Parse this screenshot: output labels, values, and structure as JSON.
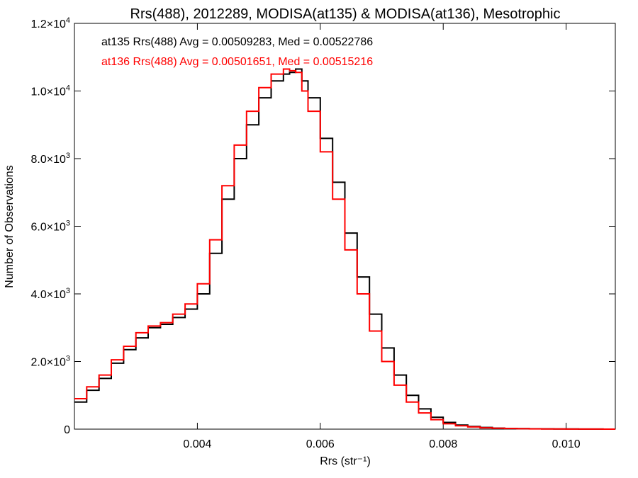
{
  "chart_data": {
    "type": "line",
    "title": "Rrs(488), 2012289, MODISA(at135) & MODISA(at136), Mesotrophic",
    "xlabel": "Rrs (str⁻¹)",
    "ylabel": "Number of Observations",
    "xlim": [
      0.002,
      0.0108
    ],
    "ylim": [
      0,
      12000
    ],
    "x_ticks": [
      0.004,
      0.006,
      0.008,
      0.01
    ],
    "x_tick_labels": [
      "0.004",
      "0.006",
      "0.008",
      "0.010"
    ],
    "y_ticks": [
      0,
      2000,
      4000,
      6000,
      8000,
      10000,
      12000
    ],
    "y_tick_labels": [
      {
        "base": "0",
        "exp": ""
      },
      {
        "base": "2.0×10",
        "exp": "3"
      },
      {
        "base": "4.0×10",
        "exp": "3"
      },
      {
        "base": "6.0×10",
        "exp": "3"
      },
      {
        "base": "8.0×10",
        "exp": "3"
      },
      {
        "base": "1.0×10",
        "exp": "4"
      },
      {
        "base": "1.2×10",
        "exp": "4"
      }
    ],
    "annotations": [
      "at135 Rrs(488) Avg = 0.00509283, Med = 0.00522786",
      "at136 Rrs(488) Avg = 0.00501651, Med = 0.00515216"
    ],
    "colors": {
      "at135": "#000000",
      "at136": "#ff0000"
    },
    "step": true,
    "series": [
      {
        "color": "#000000",
        "x": [
          0.002,
          0.0022,
          0.0024,
          0.0026,
          0.0028,
          0.003,
          0.0032,
          0.0034,
          0.0036,
          0.0038,
          0.004,
          0.0042,
          0.0044,
          0.0046,
          0.0048,
          0.005,
          0.0052,
          0.0054,
          0.0055,
          0.0056,
          0.0057,
          0.0058,
          0.006,
          0.0062,
          0.0064,
          0.0066,
          0.0068,
          0.007,
          0.0072,
          0.0074,
          0.0076,
          0.0078,
          0.008,
          0.0082,
          0.0084,
          0.0086,
          0.0088,
          0.009,
          0.0092,
          0.0094,
          0.0096,
          0.0098,
          0.01,
          0.0102,
          0.0104,
          0.0106,
          0.0108
        ],
        "y": [
          800,
          1150,
          1500,
          1950,
          2350,
          2700,
          3000,
          3100,
          3300,
          3550,
          4000,
          5200,
          6800,
          8000,
          9000,
          9800,
          10300,
          10500,
          10550,
          10650,
          10300,
          9800,
          8600,
          7300,
          5800,
          4500,
          3400,
          2400,
          1600,
          1000,
          600,
          350,
          200,
          120,
          80,
          50,
          30,
          20,
          15,
          10,
          8,
          5,
          4,
          3,
          2,
          1,
          1
        ]
      },
      {
        "color": "#ff0000",
        "x": [
          0.002,
          0.0022,
          0.0024,
          0.0026,
          0.0028,
          0.003,
          0.0032,
          0.0034,
          0.0036,
          0.0038,
          0.004,
          0.0042,
          0.0044,
          0.0046,
          0.0048,
          0.005,
          0.0052,
          0.0054,
          0.0055,
          0.0056,
          0.0057,
          0.0058,
          0.006,
          0.0062,
          0.0064,
          0.0066,
          0.0068,
          0.007,
          0.0072,
          0.0074,
          0.0076,
          0.0078,
          0.008,
          0.0082,
          0.0084,
          0.0086,
          0.0088,
          0.009,
          0.0092,
          0.0094,
          0.0096,
          0.0098,
          0.01,
          0.0102,
          0.0104,
          0.0106,
          0.0108
        ],
        "y": [
          900,
          1250,
          1600,
          2050,
          2450,
          2850,
          3050,
          3150,
          3400,
          3700,
          4300,
          5600,
          7200,
          8400,
          9400,
          10100,
          10500,
          10650,
          10600,
          10550,
          10000,
          9400,
          8200,
          6800,
          5300,
          4000,
          2900,
          2000,
          1300,
          800,
          480,
          280,
          160,
          100,
          65,
          40,
          25,
          18,
          12,
          9,
          6,
          4,
          3,
          2,
          2,
          1,
          1
        ]
      }
    ]
  }
}
